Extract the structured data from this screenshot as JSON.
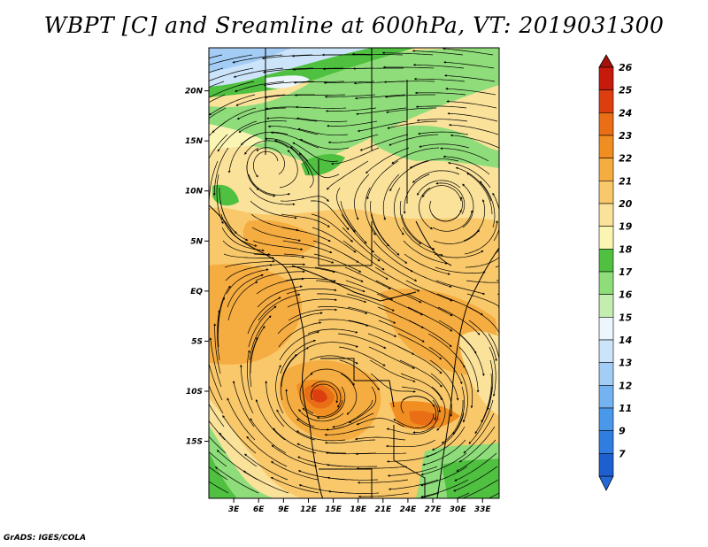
{
  "title": "WBPT [C] and Sreamline at 600hPa, VT: 2019031300",
  "credit": "GrADS: IGES/COLA",
  "map": {
    "lat_labels": [
      {
        "lat": 20,
        "label": "20N"
      },
      {
        "lat": 15,
        "label": "15N"
      },
      {
        "lat": 10,
        "label": "10N"
      },
      {
        "lat": 5,
        "label": "5N"
      },
      {
        "lat": 0,
        "label": "EQ"
      },
      {
        "lat": -5,
        "label": "5S"
      },
      {
        "lat": -10,
        "label": "10S"
      },
      {
        "lat": -15,
        "label": "15S"
      }
    ],
    "lon_labels": [
      {
        "lon": 3,
        "label": "3E"
      },
      {
        "lon": 6,
        "label": "6E"
      },
      {
        "lon": 9,
        "label": "9E"
      },
      {
        "lon": 12,
        "label": "12E"
      },
      {
        "lon": 15,
        "label": "15E"
      },
      {
        "lon": 18,
        "label": "18E"
      },
      {
        "lon": 21,
        "label": "21E"
      },
      {
        "lon": 24,
        "label": "24E"
      },
      {
        "lon": 27,
        "label": "27E"
      },
      {
        "lon": 30,
        "label": "30E"
      },
      {
        "lon": 33,
        "label": "33E"
      }
    ]
  },
  "colorbar": {
    "levels": [
      {
        "label": "7",
        "color": "#1e5fd0"
      },
      {
        "label": "9",
        "color": "#2f7de0"
      },
      {
        "label": "11",
        "color": "#4a98ea"
      },
      {
        "label": "12",
        "color": "#74b3f0"
      },
      {
        "label": "13",
        "color": "#a3cdf5"
      },
      {
        "label": "14",
        "color": "#cce4f9"
      },
      {
        "label": "15",
        "color": "#ecf6fc"
      },
      {
        "label": "16",
        "color": "#c3eeb0"
      },
      {
        "label": "17",
        "color": "#8fdd7a"
      },
      {
        "label": "18",
        "color": "#4fc040"
      },
      {
        "label": "19",
        "color": "#fbf5b4"
      },
      {
        "label": "20",
        "color": "#fbe29a"
      },
      {
        "label": "21",
        "color": "#f9c86a"
      },
      {
        "label": "22",
        "color": "#f5ac40"
      },
      {
        "label": "23",
        "color": "#f08e22"
      },
      {
        "label": "24",
        "color": "#ea6e16"
      },
      {
        "label": "25",
        "color": "#dc3e10"
      },
      {
        "label": "26",
        "color": "#c51a0c"
      }
    ],
    "low_color": "#2468d8",
    "high_color": "#a5120a"
  }
}
